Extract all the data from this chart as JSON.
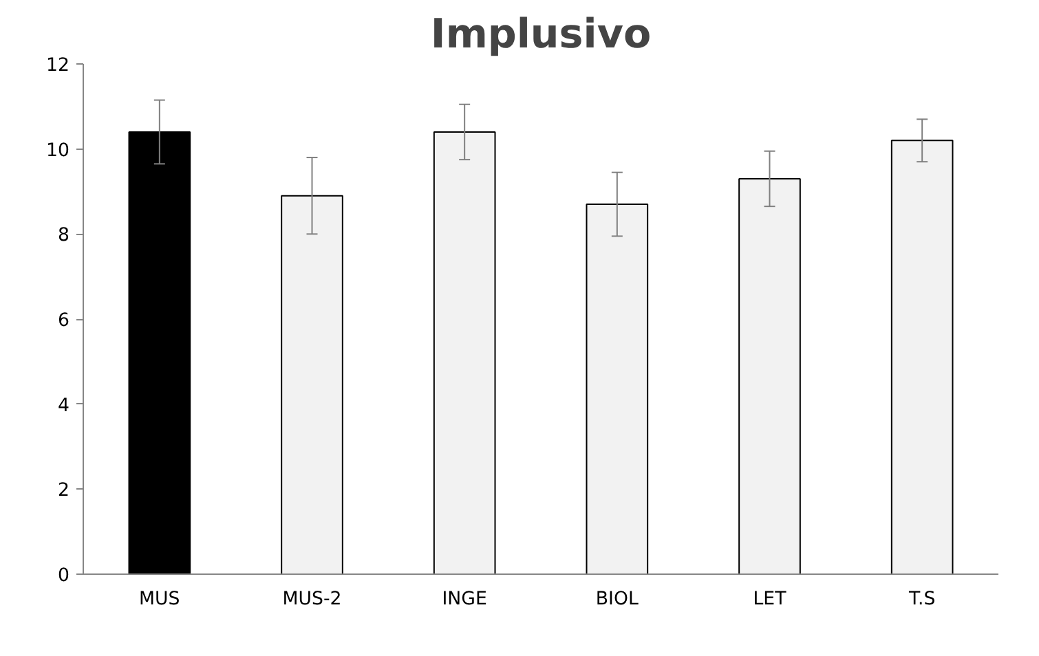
{
  "chart_data": {
    "type": "bar",
    "title": "Implusivo",
    "categories": [
      "MUS",
      "MUS-2",
      "INGE",
      "BIOL",
      "LET",
      "T.S"
    ],
    "values": [
      10.4,
      8.9,
      10.4,
      8.7,
      9.3,
      10.2
    ],
    "colors": [
      "#000000",
      "#f2f2f2",
      "#f2f2f2",
      "#f2f2f2",
      "#f2f2f2",
      "#f2f2f2"
    ],
    "errors": [
      0.75,
      0.9,
      0.65,
      0.75,
      0.65,
      0.5
    ],
    "ylim": [
      0,
      12
    ],
    "yticks": [
      0,
      2,
      4,
      6,
      8,
      10,
      12
    ],
    "grid": false
  }
}
